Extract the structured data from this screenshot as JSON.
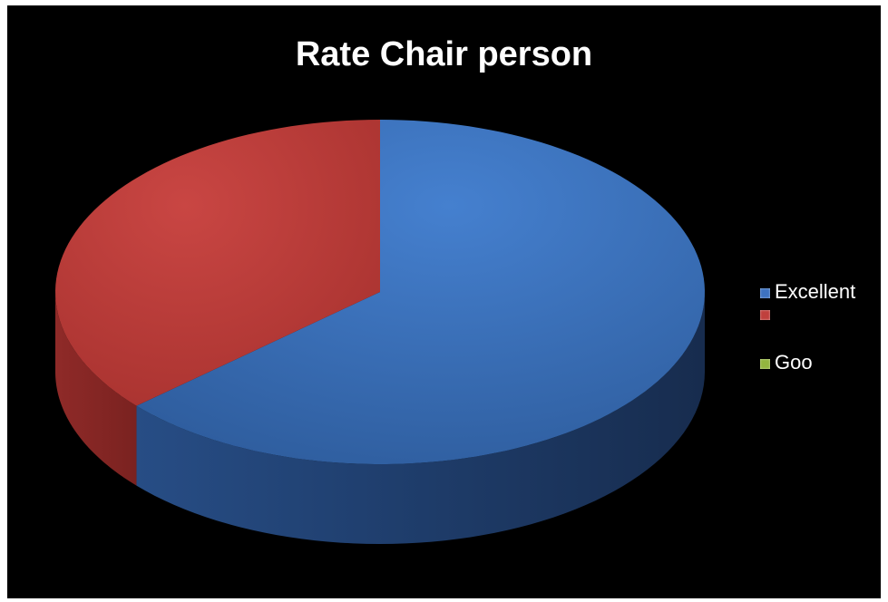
{
  "chart_data": {
    "type": "pie",
    "title": "Rate Chair person",
    "categories": [
      "Excellent",
      "",
      "Goo"
    ],
    "values": [
      63.5,
      36.5,
      0
    ],
    "colors": [
      "#3d72c0",
      "#c0403d",
      "#93b53f"
    ],
    "legend_position": "right",
    "style": "3d"
  }
}
